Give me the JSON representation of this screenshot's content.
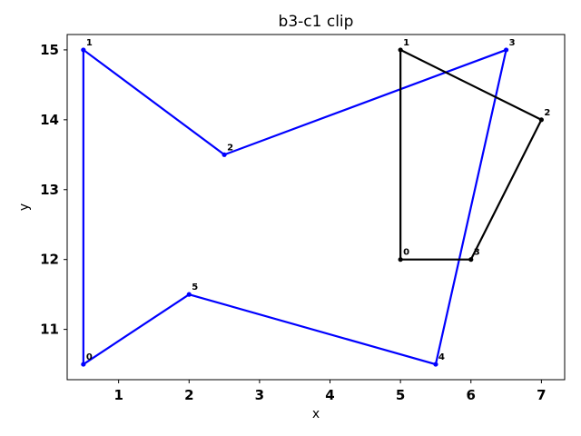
{
  "chart_data": {
    "type": "line",
    "title": "b3-c1 clip",
    "xlabel": "x",
    "ylabel": "y",
    "xlim": [
      0.27,
      7.33
    ],
    "ylim": [
      10.28,
      15.22
    ],
    "x_ticks": [
      1,
      2,
      3,
      4,
      5,
      6,
      7
    ],
    "y_ticks": [
      11,
      12,
      13,
      14,
      15
    ],
    "grid": false,
    "series": [
      {
        "color": "#0000ff",
        "closed": true,
        "points": [
          {
            "label": "0",
            "x": 0.5,
            "y": 10.5
          },
          {
            "label": "1",
            "x": 0.5,
            "y": 15.0
          },
          {
            "label": "2",
            "x": 2.5,
            "y": 13.5
          },
          {
            "label": "3",
            "x": 6.5,
            "y": 15.0
          },
          {
            "label": "4",
            "x": 5.5,
            "y": 10.5
          },
          {
            "label": "5",
            "x": 2.0,
            "y": 11.5
          }
        ]
      },
      {
        "color": "#000000",
        "closed": true,
        "points": [
          {
            "label": "0",
            "x": 5.0,
            "y": 12.0
          },
          {
            "label": "1",
            "x": 5.0,
            "y": 15.0
          },
          {
            "label": "2",
            "x": 7.0,
            "y": 14.0
          },
          {
            "label": "3",
            "x": 6.0,
            "y": 12.0
          }
        ]
      }
    ]
  }
}
